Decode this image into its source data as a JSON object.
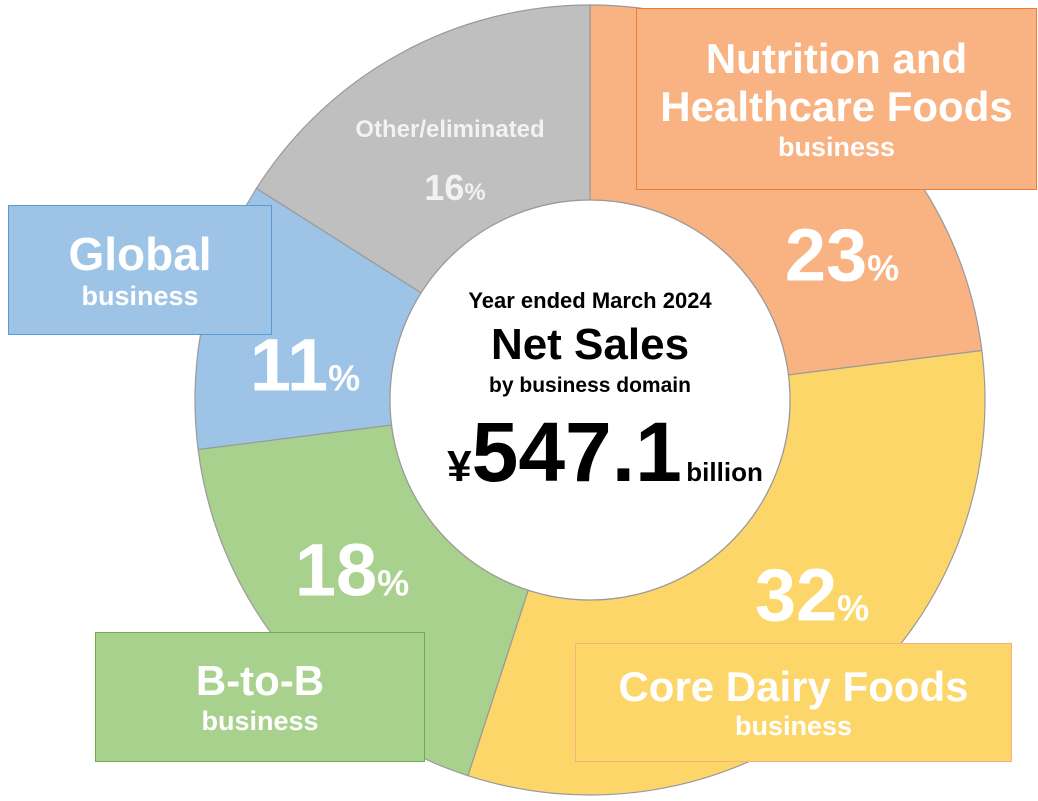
{
  "chart_data": {
    "type": "donut",
    "categories": [
      "Nutrition and Healthcare Foods",
      "Core Dairy Foods",
      "B-to-B",
      "Global",
      "Other/eliminated"
    ],
    "category_notes": [
      "business",
      "business",
      "business",
      "business",
      null
    ],
    "values": [
      23,
      32,
      18,
      11,
      16
    ],
    "value_suffix": "%",
    "colors": [
      "#F9B282",
      "#FDD669",
      "#A9D18E",
      "#9DC3E6",
      "#BFBFBF"
    ],
    "border_colors": [
      "#ED7D31",
      "#F4B183",
      "#70AD47",
      "#5B9BD5",
      null
    ]
  },
  "center": {
    "period": "Year ended March 2024",
    "title": "Net Sales",
    "subtitle": "by business domain",
    "currency": "¥",
    "total": 547.1,
    "unit": "billion"
  }
}
